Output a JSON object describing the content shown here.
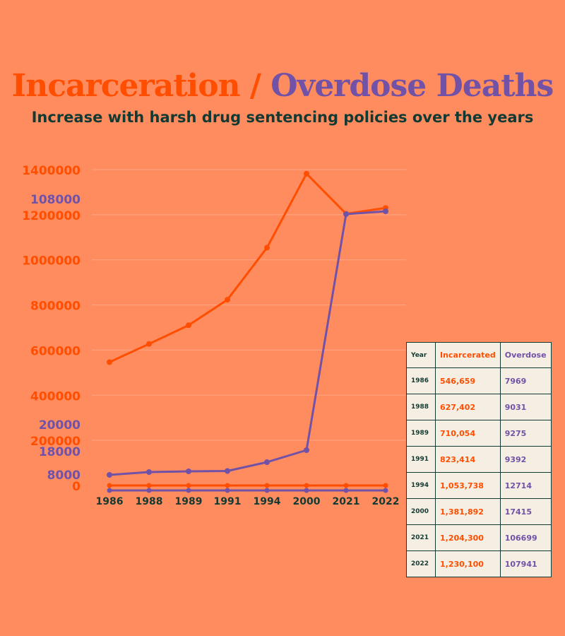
{
  "title": {
    "part1": "Incarceration /",
    "part2": "Overdose Deaths"
  },
  "subtitle": "Increase with harsh drug sentencing policies over the years",
  "colors": {
    "background": "#FF8C5F",
    "incarcerated": "#FF4E00",
    "overdose": "#7252A6",
    "dark": "#133A32",
    "table_bg": "#F4EEE3"
  },
  "chart_data": {
    "type": "line",
    "categories": [
      "1986",
      "1988",
      "1989",
      "1991",
      "1994",
      "2000",
      "2021",
      "2022"
    ],
    "series": [
      {
        "name": "Incarcerated",
        "values": [
          546659,
          627402,
          710054,
          823414,
          1053738,
          1381892,
          1204300,
          1230100
        ]
      },
      {
        "name": "Overdose",
        "values": [
          7969,
          9031,
          9275,
          9392,
          12714,
          17415,
          106699,
          107941
        ]
      }
    ],
    "left_axis": {
      "ticks": [
        "0",
        "200000",
        "400000",
        "600000",
        "800000",
        "1000000",
        "1200000",
        "1400000"
      ],
      "ylim": [
        0,
        1400000
      ]
    },
    "right_axis": {
      "ticks": [
        "8000",
        "18000",
        "20000",
        "108000"
      ]
    },
    "grid": true
  },
  "table": {
    "headers": [
      "Year",
      "Incarcerated",
      "Overdose"
    ],
    "rows": [
      [
        "1986",
        "546,659",
        "7969"
      ],
      [
        "1988",
        "627,402",
        "9031"
      ],
      [
        "1989",
        "710,054",
        "9275"
      ],
      [
        "1991",
        "823,414",
        "9392"
      ],
      [
        "1994",
        "1,053,738",
        "12714"
      ],
      [
        "2000",
        "1,381,892",
        "17415"
      ],
      [
        "2021",
        "1,204,300",
        "106699"
      ],
      [
        "2022",
        "1,230,100",
        "107941"
      ]
    ]
  }
}
